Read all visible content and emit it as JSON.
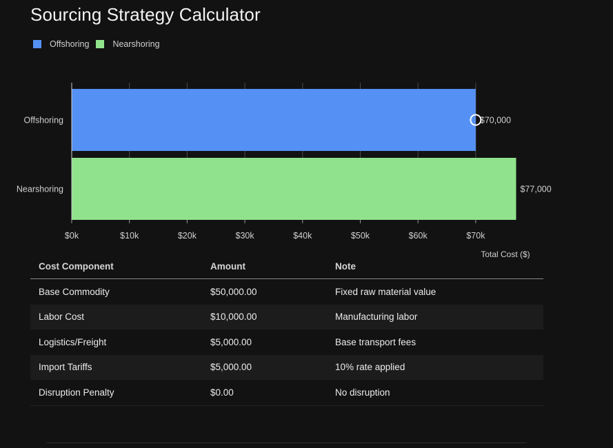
{
  "page": {
    "title": "Sourcing Strategy Calculator"
  },
  "legend": [
    {
      "label": "Offshoring",
      "color": "#5591f5"
    },
    {
      "label": "Nearshoring",
      "color": "#90e38c"
    }
  ],
  "chart_data": {
    "type": "bar",
    "orientation": "horizontal",
    "categories": [
      "Offshoring",
      "Nearshoring"
    ],
    "values": [
      70000,
      77000
    ],
    "colors": [
      "#5591f5",
      "#90e38c"
    ],
    "value_labels": [
      "$70,000",
      "$77,000"
    ],
    "x_ticks": [
      0,
      10000,
      20000,
      30000,
      40000,
      50000,
      60000,
      70000
    ],
    "x_tick_labels": [
      "$0k",
      "$10k",
      "$20k",
      "$30k",
      "$40k",
      "$50k",
      "$60k",
      "$70k"
    ],
    "xlabel": "Total Cost ($)",
    "xlim": [
      0,
      80000
    ],
    "grid": "vertical",
    "legend_position": "top-left",
    "highlight_marker": "Offshoring"
  },
  "table": {
    "columns": [
      "Cost Component",
      "Amount",
      "Note"
    ],
    "rows": [
      [
        "Base Commodity",
        "$50,000.00",
        "Fixed raw material value"
      ],
      [
        "Labor Cost",
        "$10,000.00",
        "Manufacturing labor"
      ],
      [
        "Logistics/Freight",
        "$5,000.00",
        "Base transport fees"
      ],
      [
        "Import Tariffs",
        "$5,000.00",
        "10% rate applied"
      ],
      [
        "Disruption Penalty",
        "$0.00",
        "No disruption"
      ]
    ]
  }
}
